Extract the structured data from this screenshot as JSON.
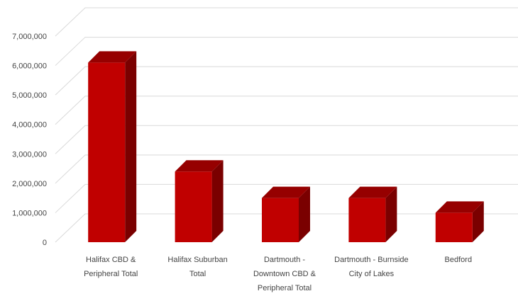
{
  "chart_data": {
    "type": "bar",
    "style": "3d-column",
    "title": "",
    "xlabel": "",
    "ylabel": "",
    "categories": [
      [
        "Halifax CBD &",
        "Peripheral Total"
      ],
      [
        "Halifax Suburban",
        "Total"
      ],
      [
        "Dartmouth -",
        "Downtown CBD &",
        "Peripheral Total"
      ],
      [
        "Dartmouth - Burnside",
        "City of Lakes"
      ],
      [
        "Bedford"
      ]
    ],
    "values": [
      6100000,
      2400000,
      1500000,
      1500000,
      1000000
    ],
    "ylim": [
      0,
      7000000
    ],
    "yticks": [
      "0",
      "1,000,000",
      "2,000,000",
      "3,000,000",
      "4,000,000",
      "5,000,000",
      "6,000,000",
      "7,000,000"
    ],
    "grid": true,
    "legend": "none",
    "colors": {
      "bar_front": "#c00000",
      "bar_side": "#7a0000",
      "bar_top": "#960000",
      "gridline": "#d9d9d9",
      "text": "#444444"
    }
  }
}
